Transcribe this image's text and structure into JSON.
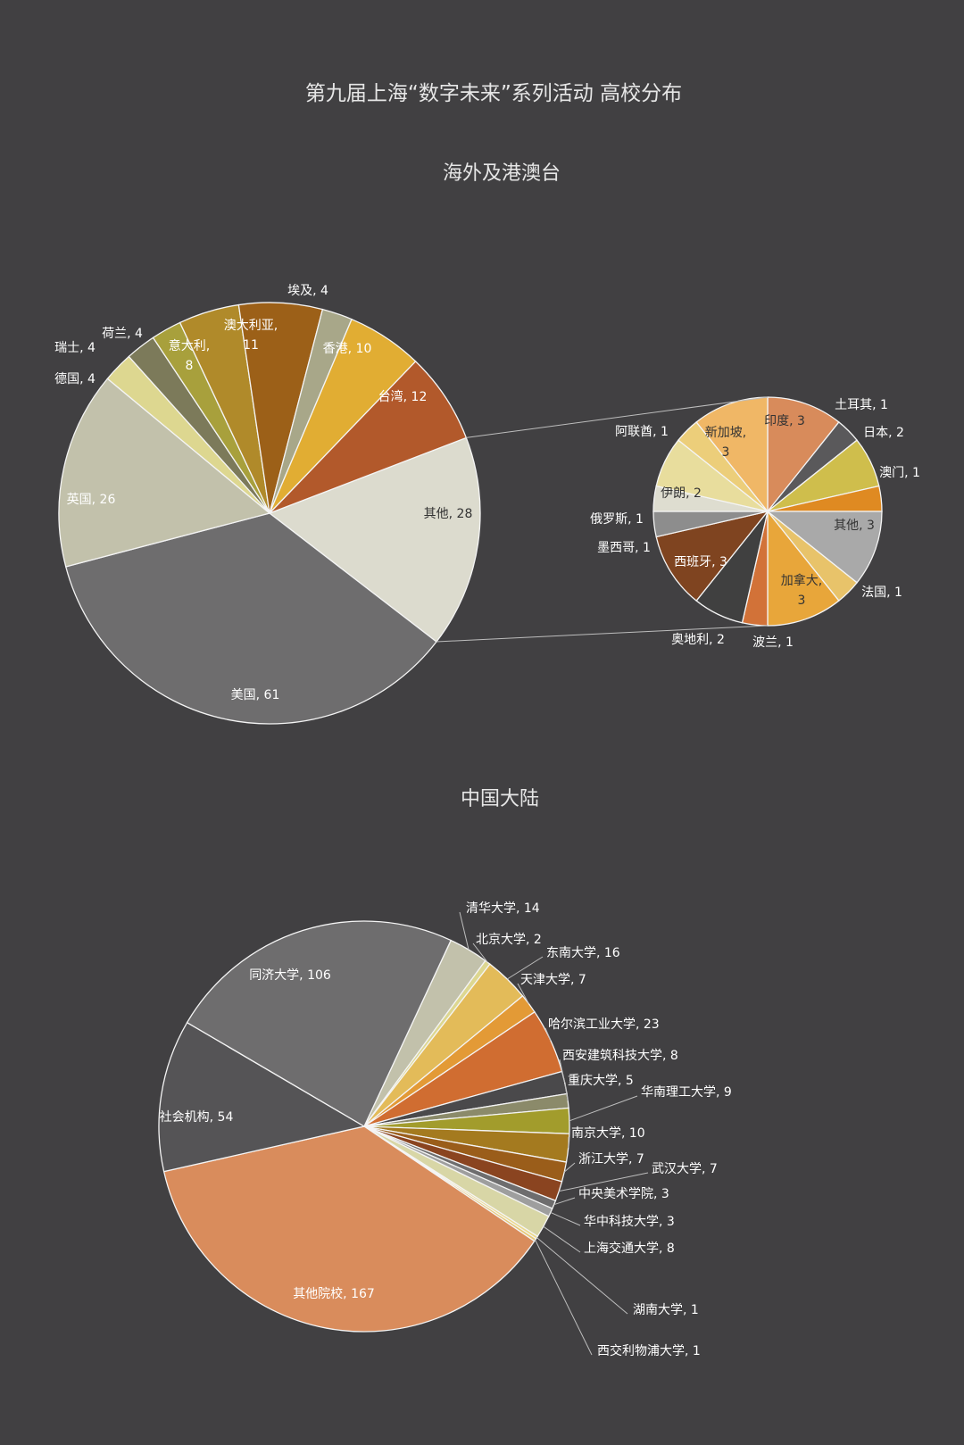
{
  "title": "第九届上海“数字未来”系列活动  高校分布",
  "chart_data": [
    {
      "type": "pie",
      "title": "海外及港澳台",
      "slices": [
        {
          "name": "其他",
          "value": 28,
          "color": "#dcdbce",
          "label_text": "其他, 28"
        },
        {
          "name": "美国",
          "value": 61,
          "color": "#6e6d6e",
          "label_text": "美国, 61"
        },
        {
          "name": "英国",
          "value": 26,
          "color": "#c2c1ab",
          "label_text": "英国, 26"
        },
        {
          "name": "德国",
          "value": 4,
          "color": "#ddd790",
          "label_text": "德国, 4"
        },
        {
          "name": "瑞士",
          "value": 4,
          "color": "#7c7a5a",
          "label_text": "瑞士, 4"
        },
        {
          "name": "荷兰",
          "value": 4,
          "color": "#a8a03c",
          "label_text": "荷兰, 4"
        },
        {
          "name": "意大利",
          "value": 8,
          "color": "#b08a2a",
          "label_text": [
            "意大利,",
            "8"
          ]
        },
        {
          "name": "澳大利亚",
          "value": 11,
          "color": "#9c6018",
          "label_text": [
            "澳大利亚,",
            "11"
          ]
        },
        {
          "name": "埃及",
          "value": 4,
          "color": "#a8a789",
          "label_text": "埃及, 4"
        },
        {
          "name": "香港",
          "value": 10,
          "color": "#e1ad33",
          "label_text": "香港, 10"
        },
        {
          "name": "台湾",
          "value": 12,
          "color": "#b2592b",
          "label_text": "台湾, 12"
        }
      ],
      "breakdown_of": "其他",
      "breakdown": [
        {
          "name": "印度",
          "value": 3,
          "color": "#d88b5b",
          "label_text": "印度, 3"
        },
        {
          "name": "土耳其",
          "value": 1,
          "color": "#5a595b",
          "label_text": "土耳其, 1"
        },
        {
          "name": "日本",
          "value": 2,
          "color": "#cfbe4c",
          "label_text": "日本, 2"
        },
        {
          "name": "澳门",
          "value": 1,
          "color": "#df8a22",
          "label_text": "澳门, 1"
        },
        {
          "name": "其他",
          "value": 3,
          "color": "#a9a9a9",
          "label_text": "其他, 3"
        },
        {
          "name": "法国",
          "value": 1,
          "color": "#e8c36a",
          "label_text": "法国, 1"
        },
        {
          "name": "加拿大",
          "value": 3,
          "color": "#e8a63a",
          "label_text": [
            "加拿大,",
            "3"
          ]
        },
        {
          "name": "波兰",
          "value": 1,
          "color": "#d27238",
          "label_text": "波兰, 1"
        },
        {
          "name": "奥地利",
          "value": 2,
          "color": "#404040",
          "label_text": "奥地利, 2"
        },
        {
          "name": "西班牙",
          "value": 3,
          "color": "#7f4420",
          "label_text": "西班牙, 3"
        },
        {
          "name": "墨西哥",
          "value": 1,
          "color": "#8d8d8d",
          "label_text": "墨西哥, 1"
        },
        {
          "name": "俄罗斯",
          "value": 1,
          "color": "#deddd0",
          "label_text": "俄罗斯, 1"
        },
        {
          "name": "伊朗",
          "value": 2,
          "color": "#e8dd9d",
          "label_text": "伊朗, 2"
        },
        {
          "name": "阿联酋",
          "value": 1,
          "color": "#ecce7a",
          "label_text": "阿联酋, 1"
        },
        {
          "name": "新加坡",
          "value": 3,
          "color": "#f0b766",
          "label_text": [
            "新加坡,",
            "3"
          ]
        }
      ]
    },
    {
      "type": "pie",
      "title": "中国大陆",
      "slices": [
        {
          "name": "清华大学",
          "value": 14,
          "color": "#c2c1ab",
          "label_text": "清华大学, 14"
        },
        {
          "name": "北京大学",
          "value": 2,
          "color": "#ddd790",
          "label_text": "北京大学, 2"
        },
        {
          "name": "东南大学",
          "value": 16,
          "color": "#e3bb59",
          "label_text": "东南大学, 16"
        },
        {
          "name": "天津大学",
          "value": 7,
          "color": "#e39a36",
          "label_text": "天津大学, 7"
        },
        {
          "name": "哈尔滨工业大学",
          "value": 23,
          "color": "#d06d31",
          "label_text": "哈尔滨工业大学, 23"
        },
        {
          "name": "西安建筑科技大学",
          "value": 8,
          "color": "#4a494b",
          "label_text": "西安建筑科技大学, 8"
        },
        {
          "name": "重庆大学",
          "value": 5,
          "color": "#8b8a6a",
          "label_text": "重庆大学, 5"
        },
        {
          "name": "华南理工大学",
          "value": 9,
          "color": "#a29c2c",
          "label_text": "华南理工大学, 9"
        },
        {
          "name": "南京大学",
          "value": 10,
          "color": "#a47a1f",
          "label_text": "南京大学, 10"
        },
        {
          "name": "浙江大学",
          "value": 7,
          "color": "#9a5d1a",
          "label_text": "浙江大学, 7"
        },
        {
          "name": "武汉大学",
          "value": 7,
          "color": "#8a4420",
          "label_text": "武汉大学, 7"
        },
        {
          "name": "中央美术学院",
          "value": 3,
          "color": "#6e6d6e",
          "label_text": "中央美术学院, 3"
        },
        {
          "name": "华中科技大学",
          "value": 3,
          "color": "#9e9e9e",
          "label_text": "华中科技大学, 3"
        },
        {
          "name": "上海交通大学",
          "value": 8,
          "color": "#d8d6a6",
          "label_text": "上海交通大学, 8"
        },
        {
          "name": "湖南大学",
          "value": 1,
          "color": "#ebd98a",
          "label_text": "湖南大学, 1"
        },
        {
          "name": "西交利物浦大学",
          "value": 1,
          "color": "#e6c774",
          "label_text": "西交利物浦大学, 1"
        },
        {
          "name": "其他院校",
          "value": 167,
          "color": "#d98c5c",
          "label_text": "其他院校, 167"
        },
        {
          "name": "社会机构",
          "value": 54,
          "color": "#555456",
          "label_text": "社会机构, 54"
        },
        {
          "name": "同济大学",
          "value": 106,
          "color": "#6e6d6e",
          "label_text": "同济大学, 106"
        }
      ]
    }
  ]
}
